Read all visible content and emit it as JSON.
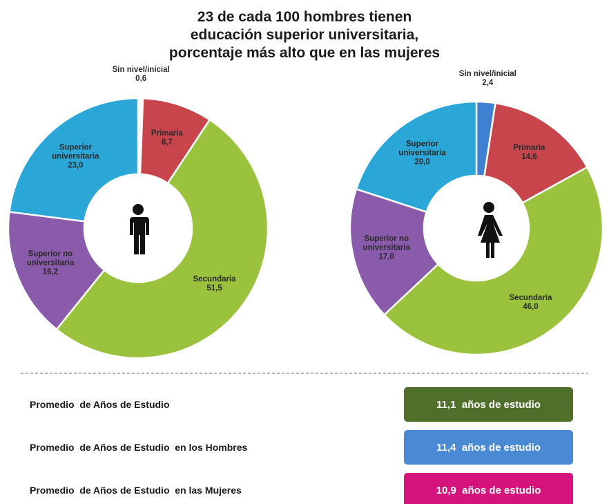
{
  "title": "23 de cada 100 hombres tienen\neducación superior universitaria,\nporcentaje más alto que en las mujeres",
  "chart_data": [
    {
      "type": "pie",
      "categories": [
        "Sin nivel/inicial",
        "Primaria",
        "Secundaria",
        "Superior no universitaria",
        "Superior universitaria"
      ],
      "values": [
        0.6,
        8.7,
        51.5,
        16.2,
        23.0
      ],
      "value_labels": [
        "0,6",
        "8,7",
        "51,5",
        "16,2",
        "23,0"
      ],
      "colors": [
        "#f4f8fc",
        "#c8464b",
        "#9bc23d",
        "#8a5aab",
        "#2aa7d6"
      ]
    },
    {
      "type": "pie",
      "categories": [
        "Sin nivel/inicial",
        "Primaria",
        "Secundaria",
        "Superior no universitaria",
        "Superior universitaria"
      ],
      "values": [
        2.4,
        14.6,
        46.0,
        17.0,
        20.0
      ],
      "value_labels": [
        "2,4",
        "14,6",
        "46,0",
        "17,0",
        "20,0"
      ],
      "colors": [
        "#3f80d0",
        "#c8464b",
        "#9bc23d",
        "#8a5aab",
        "#2aa7d6"
      ]
    }
  ],
  "stats": [
    {
      "label": "Promedio  de Años de Estudio",
      "value": "11,1  años de estudio"
    },
    {
      "label": "Promedio  de Años de Estudio  en los Hombres",
      "value": "11,4  años de estudio"
    },
    {
      "label": "Promedio  de Años de Estudio  en las Mujeres",
      "value": "10,9  años de estudio"
    }
  ]
}
